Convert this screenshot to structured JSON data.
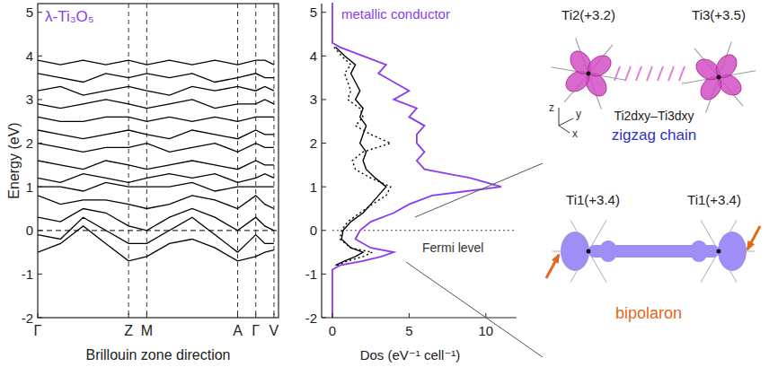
{
  "chart_data": [
    {
      "type": "line",
      "title": "λ-Ti₃O₅",
      "x_label": "Brillouin zone direction",
      "y_label": "Energy (eV)",
      "x": [
        0,
        0.25,
        0.5,
        0.75,
        1.0,
        1.2,
        1.45,
        1.7,
        1.95,
        2.2,
        2.4,
        2.5,
        2.6
      ],
      "xlim": [
        0,
        2.65
      ],
      "xticks": [
        {
          "value": 0,
          "label": "Γ"
        },
        {
          "value": 1.0,
          "label": "Z"
        },
        {
          "value": 1.2,
          "label": "M"
        },
        {
          "value": 2.2,
          "label": "A"
        },
        {
          "value": 2.4,
          "label": "Γ"
        },
        {
          "value": 2.6,
          "label": "V"
        }
      ],
      "ylim": [
        -2,
        5.2
      ],
      "yticks": [
        -2,
        -1,
        0,
        1,
        2,
        3,
        4,
        5
      ],
      "grid": true,
      "fermi_level": 0,
      "color": "#000000",
      "series": [
        {
          "values": [
            -0.5,
            -0.3,
            0.1,
            -0.3,
            -0.7,
            -0.6,
            -0.3,
            -0.2,
            -0.4,
            -0.7,
            -0.6,
            -0.5,
            -0.45
          ]
        },
        {
          "values": [
            -0.1,
            -0.2,
            0.3,
            0.0,
            -0.3,
            -0.3,
            0.0,
            0.3,
            -0.1,
            -0.5,
            -0.1,
            -0.3,
            -0.3
          ]
        },
        {
          "values": [
            0.3,
            0.2,
            0.5,
            0.4,
            0.1,
            0.0,
            0.3,
            0.5,
            0.3,
            0.0,
            0.3,
            0.1,
            0.0
          ]
        },
        {
          "values": [
            0.8,
            0.6,
            0.7,
            0.7,
            0.6,
            0.5,
            0.6,
            0.8,
            0.7,
            0.5,
            0.8,
            0.6,
            0.5
          ]
        },
        {
          "values": [
            1.0,
            1.0,
            0.9,
            1.1,
            1.0,
            1.0,
            1.0,
            1.1,
            0.9,
            1.0,
            1.0,
            1.0,
            1.0
          ]
        },
        {
          "values": [
            1.2,
            1.1,
            1.3,
            1.2,
            1.1,
            1.2,
            1.3,
            1.2,
            1.3,
            1.1,
            1.2,
            1.3,
            1.2
          ]
        },
        {
          "values": [
            1.6,
            1.5,
            1.4,
            1.6,
            1.5,
            1.4,
            1.5,
            1.6,
            1.5,
            1.4,
            1.6,
            1.5,
            1.5
          ]
        },
        {
          "values": [
            2.0,
            1.9,
            1.8,
            1.9,
            1.9,
            2.0,
            1.8,
            1.9,
            2.0,
            1.8,
            2.0,
            1.9,
            1.9
          ]
        },
        {
          "values": [
            2.3,
            2.2,
            2.1,
            2.2,
            2.3,
            2.2,
            2.1,
            2.3,
            2.2,
            2.1,
            2.3,
            2.2,
            2.2
          ]
        },
        {
          "values": [
            2.6,
            2.5,
            2.5,
            2.6,
            2.6,
            2.5,
            2.6,
            2.5,
            2.6,
            2.5,
            2.6,
            2.6,
            2.6
          ]
        },
        {
          "values": [
            2.9,
            2.8,
            2.9,
            3.0,
            2.9,
            2.8,
            2.9,
            3.0,
            2.8,
            2.9,
            2.9,
            3.0,
            2.9
          ]
        },
        {
          "values": [
            3.2,
            3.3,
            3.1,
            3.2,
            3.3,
            3.2,
            3.1,
            3.3,
            3.2,
            3.3,
            3.2,
            3.3,
            3.2
          ]
        },
        {
          "values": [
            3.6,
            3.5,
            3.4,
            3.6,
            3.5,
            3.6,
            3.5,
            3.6,
            3.4,
            3.5,
            3.6,
            3.5,
            3.5
          ]
        },
        {
          "values": [
            3.9,
            3.8,
            3.9,
            3.8,
            3.9,
            3.8,
            3.9,
            3.8,
            3.9,
            3.8,
            3.9,
            3.9,
            3.8
          ]
        }
      ]
    },
    {
      "type": "line",
      "orientation": "horizontal",
      "x_label": "Dos (eV⁻¹ cell⁻¹)",
      "x": [
        -2,
        -0.9,
        -0.8,
        -0.7,
        -0.6,
        -0.5,
        -0.4,
        -0.2,
        0,
        0.2,
        0.4,
        0.6,
        0.8,
        1.0,
        1.2,
        1.4,
        1.6,
        1.8,
        2.0,
        2.2,
        2.4,
        2.6,
        2.8,
        3.0,
        3.2,
        3.4,
        3.6,
        3.8,
        4.0,
        4.2,
        4.3,
        5.5
      ],
      "xlim": [
        -0.7,
        12
      ],
      "xticks": [
        0,
        5,
        10
      ],
      "ylim": [
        -2,
        5.2
      ],
      "yticks": [
        -2,
        -1,
        0,
        1,
        2,
        3,
        4,
        5
      ],
      "annotations": [
        {
          "text": "metallic conductor",
          "color": "#8a3cf0"
        },
        {
          "text": "Fermi level",
          "y": 0,
          "line_style": "dotted"
        }
      ],
      "series": [
        {
          "color": "#8a3cf0",
          "line_style": "solid",
          "values": [
            0,
            0,
            0.5,
            2,
            3.2,
            4,
            2.5,
            1.5,
            1.8,
            2.5,
            4,
            5,
            6.5,
            11,
            9,
            6,
            5.5,
            6,
            5.5,
            5.5,
            6,
            5,
            5.5,
            4,
            5,
            4,
            3,
            3.5,
            2,
            0.5,
            0,
            0
          ]
        },
        {
          "color": "#000000",
          "line_style": "solid",
          "values": [
            null,
            null,
            0.2,
            0.8,
            1.5,
            2,
            1.2,
            0.6,
            0.7,
            1.2,
            2,
            2.5,
            3,
            3.5,
            2.8,
            2.2,
            2,
            2.2,
            1.8,
            2,
            2.2,
            1.8,
            2,
            1.5,
            1.8,
            1.5,
            1.2,
            1.5,
            0.8,
            0.2,
            null,
            null
          ]
        },
        {
          "color": "#000000",
          "line_style": "dotted",
          "values": [
            null,
            null,
            0.3,
            1,
            2,
            2.6,
            1.2,
            0.5,
            0.6,
            1,
            1.8,
            2.6,
            3.5,
            3.8,
            2.5,
            1.5,
            1.3,
            2.0,
            3.8,
            2.5,
            1.5,
            2.0,
            1.8,
            1.0,
            1.2,
            1.0,
            0.8,
            1.2,
            0.6,
            0.1,
            null,
            null
          ]
        }
      ]
    }
  ],
  "diagram": {
    "zigzag": {
      "atoms": [
        "Ti2(+3.2)",
        "Ti3(+3.5)"
      ],
      "orbital": "Ti2dxy–Ti3dxy",
      "label": "zigzag chain",
      "axes": [
        "z",
        "y",
        "x"
      ]
    },
    "bipolaron": {
      "atoms": [
        "Ti1(+3.4)",
        "Ti1(+3.4)"
      ],
      "label": "bipolaron"
    }
  }
}
